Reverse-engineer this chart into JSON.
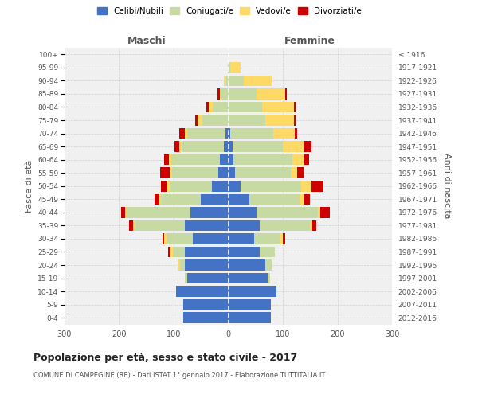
{
  "age_groups": [
    "0-4",
    "5-9",
    "10-14",
    "15-19",
    "20-24",
    "25-29",
    "30-34",
    "35-39",
    "40-44",
    "45-49",
    "50-54",
    "55-59",
    "60-64",
    "65-69",
    "70-74",
    "75-79",
    "80-84",
    "85-89",
    "90-94",
    "95-99",
    "100+"
  ],
  "birth_years": [
    "2012-2016",
    "2007-2011",
    "2002-2006",
    "1997-2001",
    "1992-1996",
    "1987-1991",
    "1982-1986",
    "1977-1981",
    "1972-1976",
    "1967-1971",
    "1962-1966",
    "1957-1961",
    "1952-1956",
    "1947-1951",
    "1942-1946",
    "1937-1941",
    "1932-1936",
    "1927-1931",
    "1922-1926",
    "1917-1921",
    "≤ 1916"
  ],
  "males_celibe": [
    82,
    82,
    95,
    75,
    80,
    80,
    65,
    80,
    70,
    50,
    30,
    18,
    15,
    8,
    5,
    0,
    0,
    0,
    0,
    0,
    0
  ],
  "males_coniugato": [
    0,
    0,
    0,
    4,
    8,
    22,
    48,
    90,
    115,
    73,
    78,
    85,
    90,
    78,
    70,
    48,
    28,
    12,
    4,
    1,
    0
  ],
  "males_vedovo": [
    0,
    0,
    0,
    0,
    4,
    4,
    4,
    4,
    4,
    4,
    4,
    4,
    4,
    4,
    5,
    8,
    8,
    4,
    4,
    0,
    0
  ],
  "males_divorziato": [
    0,
    0,
    0,
    0,
    0,
    4,
    4,
    8,
    8,
    8,
    12,
    18,
    8,
    8,
    10,
    4,
    4,
    4,
    0,
    0,
    0
  ],
  "females_nubile": [
    78,
    78,
    88,
    72,
    68,
    58,
    48,
    58,
    52,
    38,
    22,
    12,
    10,
    8,
    4,
    0,
    0,
    0,
    0,
    0,
    0
  ],
  "females_coniugata": [
    0,
    0,
    0,
    4,
    12,
    28,
    48,
    92,
    112,
    92,
    112,
    102,
    108,
    92,
    78,
    68,
    62,
    52,
    28,
    4,
    0
  ],
  "females_vedova": [
    0,
    0,
    0,
    0,
    0,
    0,
    4,
    4,
    4,
    8,
    18,
    12,
    22,
    38,
    40,
    52,
    58,
    52,
    52,
    18,
    0
  ],
  "females_divorziata": [
    0,
    0,
    0,
    0,
    0,
    0,
    4,
    8,
    18,
    12,
    22,
    12,
    8,
    14,
    4,
    4,
    4,
    4,
    0,
    0,
    0
  ],
  "colors": {
    "celibe": "#4472c4",
    "coniugato": "#c8daa4",
    "vedovo": "#ffd966",
    "divorziato": "#cc0000"
  },
  "xlim": 300,
  "title": "Popolazione per età, sesso e stato civile - 2017",
  "subtitle": "COMUNE DI CAMPEGINE (RE) - Dati ISTAT 1° gennaio 2017 - Elaborazione TUTTITALIA.IT",
  "ylabel_left": "Fasce di età",
  "ylabel_right": "Anni di nascita",
  "xlabel_left": "Maschi",
  "xlabel_right": "Femmine",
  "legend_labels": [
    "Celibi/Nubili",
    "Coniugati/e",
    "Vedovi/e",
    "Divorziati/e"
  ],
  "bg_color": "#f0f0f0",
  "grid_color": "#cccccc"
}
